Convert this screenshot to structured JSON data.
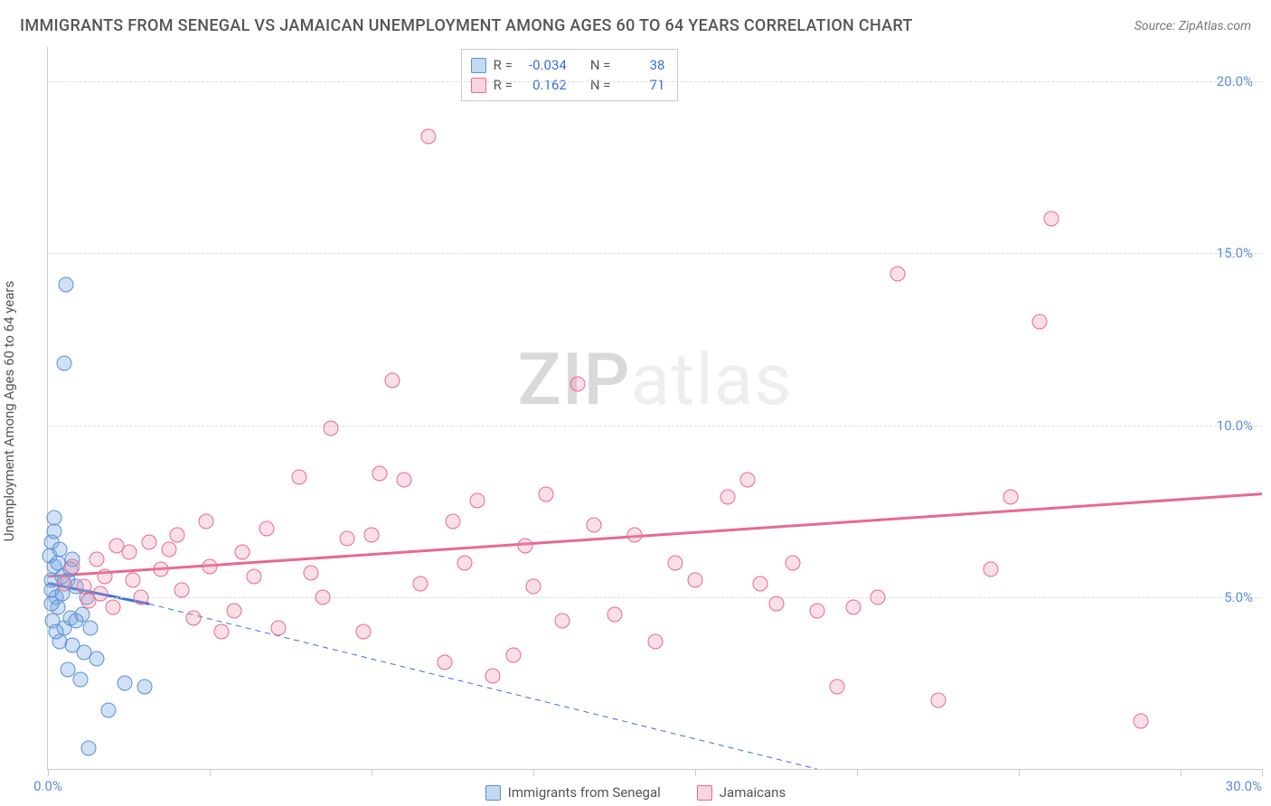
{
  "title": "IMMIGRANTS FROM SENEGAL VS JAMAICAN UNEMPLOYMENT AMONG AGES 60 TO 64 YEARS CORRELATION CHART",
  "source": "Source: ZipAtlas.com",
  "y_axis_label": "Unemployment Among Ages 60 to 64 years",
  "watermark_bold": "ZIP",
  "watermark_light": "atlas",
  "chart": {
    "type": "scatter",
    "xlim": [
      0,
      30
    ],
    "ylim": [
      0,
      21
    ],
    "x_ticks": [
      0,
      4,
      8,
      12,
      16,
      20,
      24,
      28,
      30
    ],
    "x_tick_labels": {
      "0": "0.0%",
      "30": "30.0%"
    },
    "y_ticks": [
      5,
      10,
      15,
      20
    ],
    "y_tick_labels": {
      "5": "5.0%",
      "10": "10.0%",
      "15": "15.0%",
      "20": "20.0%"
    },
    "background_color": "#ffffff",
    "grid_color": "#dddddd",
    "axis_color": "#cccccc",
    "tick_label_color": "#5b8fd6",
    "marker_size": 17,
    "series": [
      {
        "name": "Immigrants from Senegal",
        "key": "senegal",
        "color_fill": "rgba(120,170,225,0.35)",
        "color_stroke": "#5b8fd6",
        "R": "-0.034",
        "N": "38",
        "trend": {
          "x1": 0,
          "y1": 5.4,
          "x2": 2.5,
          "y2": 4.8,
          "solid_until_x": 2.5,
          "dash_to_x": 19,
          "dash_to_y": 0,
          "color": "#3a6fd8",
          "width": 3,
          "dash_width": 1
        },
        "points": [
          [
            0.1,
            5.5
          ],
          [
            0.15,
            5.9
          ],
          [
            0.1,
            5.2
          ],
          [
            0.2,
            5.0
          ],
          [
            0.25,
            4.7
          ],
          [
            0.35,
            5.1
          ],
          [
            0.1,
            6.6
          ],
          [
            0.15,
            6.9
          ],
          [
            0.05,
            6.2
          ],
          [
            0.3,
            6.4
          ],
          [
            0.12,
            4.3
          ],
          [
            0.4,
            4.1
          ],
          [
            0.55,
            4.4
          ],
          [
            0.7,
            4.3
          ],
          [
            0.85,
            4.5
          ],
          [
            1.05,
            4.1
          ],
          [
            0.3,
            3.7
          ],
          [
            0.6,
            3.6
          ],
          [
            0.9,
            3.4
          ],
          [
            1.2,
            3.2
          ],
          [
            0.5,
            2.9
          ],
          [
            0.8,
            2.6
          ],
          [
            1.9,
            2.5
          ],
          [
            2.4,
            2.4
          ],
          [
            1.5,
            1.7
          ],
          [
            1.0,
            0.6
          ],
          [
            0.15,
            7.3
          ],
          [
            0.1,
            4.8
          ],
          [
            0.5,
            5.5
          ],
          [
            0.7,
            5.3
          ],
          [
            0.95,
            5.0
          ],
          [
            0.35,
            5.6
          ],
          [
            0.55,
            5.8
          ],
          [
            0.2,
            4.0
          ],
          [
            0.4,
            11.8
          ],
          [
            0.45,
            14.1
          ],
          [
            0.25,
            6.0
          ],
          [
            0.6,
            6.1
          ]
        ]
      },
      {
        "name": "Jamaicans",
        "key": "jamaicans",
        "color_fill": "rgba(240,150,175,0.30)",
        "color_stroke": "#e66a8f",
        "R": "0.162",
        "N": "71",
        "trend": {
          "x1": 0,
          "y1": 5.6,
          "x2": 30,
          "y2": 8.0,
          "color": "#e66a8f",
          "width": 3
        },
        "points": [
          [
            0.4,
            5.4
          ],
          [
            0.6,
            5.9
          ],
          [
            0.9,
            5.3
          ],
          [
            1.2,
            6.1
          ],
          [
            1.4,
            5.6
          ],
          [
            1.7,
            6.5
          ],
          [
            2.0,
            6.3
          ],
          [
            2.3,
            5.0
          ],
          [
            2.5,
            6.6
          ],
          [
            2.8,
            5.8
          ],
          [
            3.0,
            6.4
          ],
          [
            3.3,
            5.2
          ],
          [
            3.6,
            4.4
          ],
          [
            4.0,
            5.9
          ],
          [
            4.3,
            4.0
          ],
          [
            4.6,
            4.6
          ],
          [
            5.1,
            5.6
          ],
          [
            5.4,
            7.0
          ],
          [
            5.7,
            4.1
          ],
          [
            6.2,
            8.5
          ],
          [
            6.5,
            5.7
          ],
          [
            7.0,
            9.9
          ],
          [
            7.4,
            6.7
          ],
          [
            7.8,
            4.0
          ],
          [
            8.2,
            8.6
          ],
          [
            8.5,
            11.3
          ],
          [
            8.8,
            8.4
          ],
          [
            9.2,
            5.4
          ],
          [
            9.4,
            18.4
          ],
          [
            9.8,
            3.1
          ],
          [
            10.3,
            6.0
          ],
          [
            10.6,
            7.8
          ],
          [
            11.0,
            2.7
          ],
          [
            11.5,
            3.3
          ],
          [
            12.0,
            5.3
          ],
          [
            12.3,
            8.0
          ],
          [
            12.7,
            4.3
          ],
          [
            13.1,
            11.2
          ],
          [
            13.5,
            7.1
          ],
          [
            14.0,
            4.5
          ],
          [
            15.0,
            3.7
          ],
          [
            15.5,
            6.0
          ],
          [
            16.0,
            5.5
          ],
          [
            16.8,
            7.9
          ],
          [
            17.3,
            8.4
          ],
          [
            17.6,
            5.4
          ],
          [
            18.0,
            4.8
          ],
          [
            18.4,
            6.0
          ],
          [
            19.0,
            4.6
          ],
          [
            19.5,
            2.4
          ],
          [
            19.9,
            4.7
          ],
          [
            21.0,
            14.4
          ],
          [
            22.0,
            2.0
          ],
          [
            23.3,
            5.8
          ],
          [
            23.8,
            7.9
          ],
          [
            24.5,
            13.0
          ],
          [
            24.8,
            16.0
          ],
          [
            27.0,
            1.4
          ],
          [
            1.0,
            4.9
          ],
          [
            1.3,
            5.1
          ],
          [
            1.6,
            4.7
          ],
          [
            2.1,
            5.5
          ],
          [
            3.2,
            6.8
          ],
          [
            3.9,
            7.2
          ],
          [
            4.8,
            6.3
          ],
          [
            6.8,
            5.0
          ],
          [
            8.0,
            6.8
          ],
          [
            10.0,
            7.2
          ],
          [
            11.8,
            6.5
          ],
          [
            14.5,
            6.8
          ],
          [
            20.5,
            5.0
          ]
        ]
      }
    ]
  },
  "legend_top": {
    "rows": [
      {
        "swatch": "blue",
        "r_label": "R =",
        "r_val": "-0.034",
        "n_label": "N =",
        "n_val": "38"
      },
      {
        "swatch": "pink",
        "r_label": "R =",
        "r_val": "0.162",
        "n_label": "N =",
        "n_val": "71"
      }
    ]
  },
  "legend_bottom": {
    "items": [
      {
        "swatch": "blue",
        "label": "Immigrants from Senegal"
      },
      {
        "swatch": "pink",
        "label": "Jamaicans"
      }
    ]
  }
}
